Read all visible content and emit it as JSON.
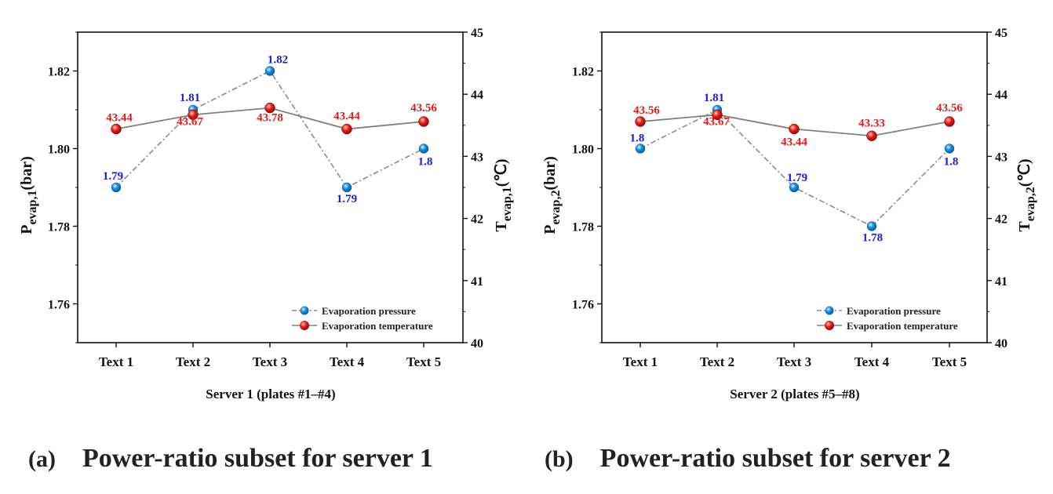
{
  "colors": {
    "pressure": "#1a8fe0",
    "temperature": "#e8231c",
    "pressure_label": "#1a1ad6",
    "temperature_label": "#e01c1c",
    "pressure_line": "#8a8a8a",
    "temperature_line": "#808080",
    "axis": "#111111"
  },
  "panels": [
    {
      "letter": "(a)",
      "caption": "Power-ratio subset for server 1",
      "chart_data": {
        "type": "line",
        "categories": [
          "Text 1",
          "Text 2",
          "Text 3",
          "Text 4",
          "Text 5"
        ],
        "xlabel": "Server 1 (plates #1–#4)",
        "ylabel_left": {
          "main": "P",
          "sub": "evap,1",
          "unit": "(bar)"
        },
        "ylabel_right": {
          "main": "T",
          "sub": "evap,1",
          "unit": "(℃)"
        },
        "ylim_left": [
          1.75,
          1.83
        ],
        "yticks_left": [
          "1.76",
          "1.78",
          "1.80",
          "1.82"
        ],
        "ylim_right": [
          40,
          45
        ],
        "yticks_right": [
          "40",
          "41",
          "42",
          "43",
          "44",
          "45"
        ],
        "series": [
          {
            "name": "Evaporation pressure",
            "axis": "left",
            "values": [
              1.79,
              1.81,
              1.82,
              1.79,
              1.8
            ],
            "labels": [
              "1.79",
              "1.81",
              "1.82",
              "1.79",
              "1.8"
            ]
          },
          {
            "name": "Evaporation temperature",
            "axis": "right",
            "values": [
              43.44,
              43.67,
              43.78,
              43.44,
              43.56
            ],
            "labels": [
              "43.44",
              "43.67",
              "43.78",
              "43.44",
              "43.56"
            ]
          }
        ],
        "legend": "bottom-right"
      }
    },
    {
      "letter": "(b)",
      "caption": "Power-ratio subset for server 2",
      "chart_data": {
        "type": "line",
        "categories": [
          "Text 1",
          "Text 2",
          "Text 3",
          "Text 4",
          "Text 5"
        ],
        "xlabel": "Server 2 (plates #5–#8)",
        "ylabel_left": {
          "main": "P",
          "sub": "evap,2",
          "unit": "(bar)"
        },
        "ylabel_right": {
          "main": "T",
          "sub": "evap,2",
          "unit": "(℃)"
        },
        "ylim_left": [
          1.75,
          1.83
        ],
        "yticks_left": [
          "1.76",
          "1.78",
          "1.80",
          "1.82"
        ],
        "ylim_right": [
          40,
          45
        ],
        "yticks_right": [
          "40",
          "41",
          "42",
          "43",
          "44",
          "45"
        ],
        "series": [
          {
            "name": "Evaporation pressure",
            "axis": "left",
            "values": [
              1.8,
              1.81,
              1.79,
              1.78,
              1.8
            ],
            "labels": [
              "1.8",
              "1.81",
              "1.79",
              "1.78",
              "1.8"
            ]
          },
          {
            "name": "Evaporation temperature",
            "axis": "right",
            "values": [
              43.56,
              43.67,
              43.44,
              43.33,
              43.56
            ],
            "labels": [
              "43.56",
              "43.67",
              "43.44",
              "43.33",
              "43.56"
            ]
          }
        ],
        "legend": "bottom-right"
      }
    }
  ]
}
